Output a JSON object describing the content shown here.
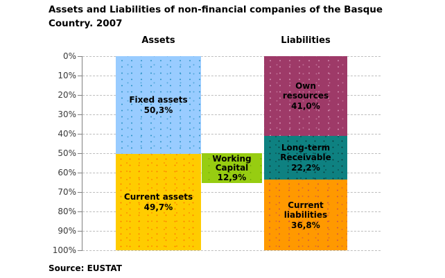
{
  "title": "Assets and Liabilities of non-financial companies of the Basque Country. 2007",
  "source_note": "Source: EUSTAT",
  "column_headers": {
    "assets": "Assets",
    "liabilities": "Liabilities"
  },
  "chart_data": {
    "type": "bar",
    "subtype": "100% stacked columns, value axis inverted (0% at top, 100% at bottom)",
    "title": "Assets and Liabilities of non-financial companies of the Basque Country. 2007",
    "categories": [
      "Assets",
      "Liabilities"
    ],
    "y_axis": {
      "tick_labels": [
        "0%",
        "10%",
        "20%",
        "30%",
        "40%",
        "50%",
        "60%",
        "70%",
        "80%",
        "90%",
        "100%"
      ],
      "range_pct": [
        0,
        100
      ],
      "grid": "dashed horizontal gridlines every 10%"
    },
    "legend": "none (labels inside segments)",
    "segments": [
      {
        "category": "Assets",
        "name": "Fixed assets",
        "value_pct": 50.3,
        "value_label": "50,3%",
        "from_pct": 0,
        "to_pct": 50.3,
        "color": "#99CCFF"
      },
      {
        "category": "Assets",
        "name": "Current assets",
        "value_pct": 49.7,
        "value_label": "49,7%",
        "from_pct": 50.3,
        "to_pct": 100,
        "color": "#FFCC00"
      },
      {
        "category": "Between",
        "name": "Working Capital",
        "value_pct": 12.9,
        "value_label": "12,9%",
        "from_pct": 50.3,
        "to_pct": 63.2,
        "color": "#97CD11"
      },
      {
        "category": "Liabilities",
        "name": "Own resources",
        "value_pct": 41.0,
        "value_label": "41,0%",
        "from_pct": 0,
        "to_pct": 41.0,
        "color": "#9E3A68"
      },
      {
        "category": "Liabilities",
        "name": "Long-term Receivable",
        "value_pct": 22.2,
        "value_label": "22,2%",
        "from_pct": 41.0,
        "to_pct": 63.2,
        "color": "#0E8181"
      },
      {
        "category": "Liabilities",
        "name": "Current liabilities",
        "value_pct": 36.8,
        "value_label": "36,8%",
        "from_pct": 63.2,
        "to_pct": 100,
        "color": "#FF9900"
      }
    ]
  }
}
